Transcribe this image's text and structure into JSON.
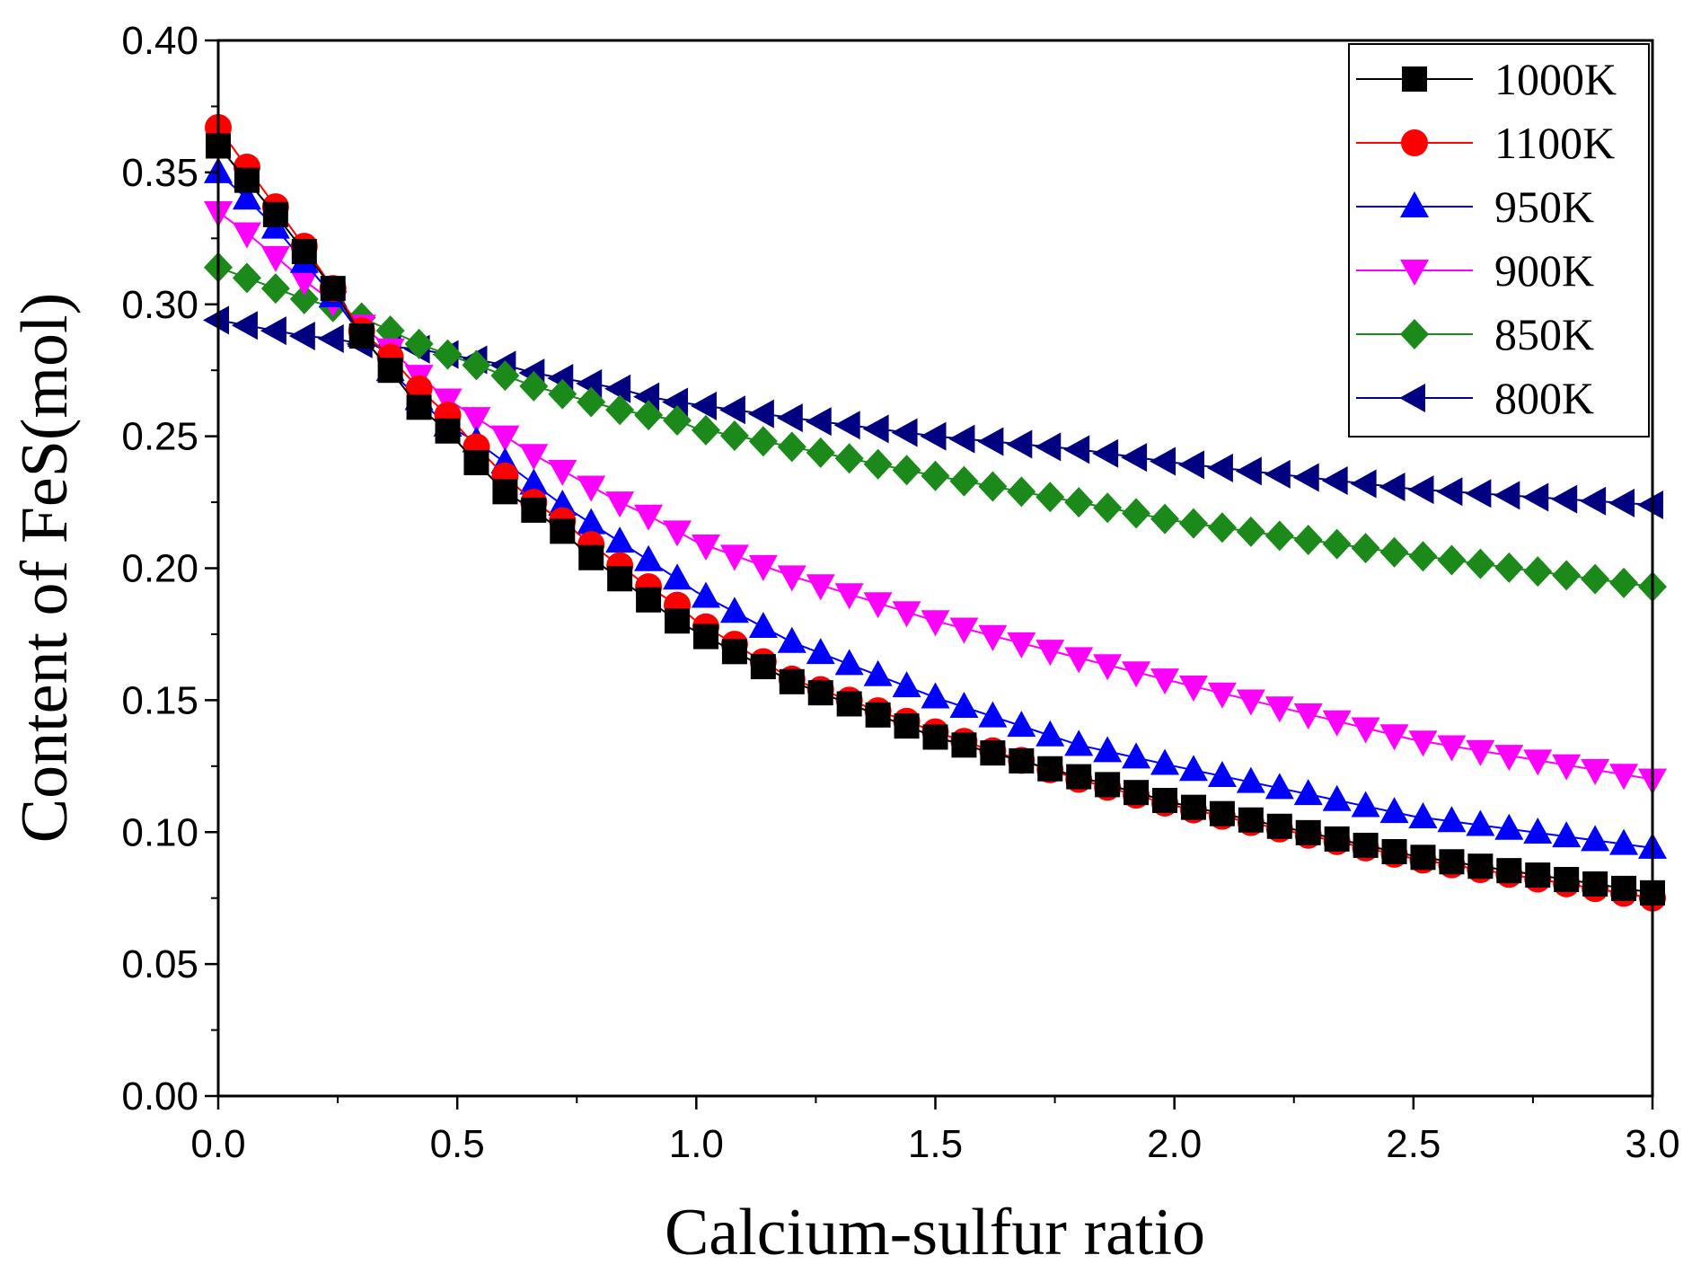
{
  "chart_data": {
    "type": "line",
    "xlabel": "Calcium-sulfur ratio",
    "ylabel": "Content of FeS(mol)",
    "xlim": [
      0,
      3.0
    ],
    "ylim": [
      0,
      0.4
    ],
    "x_ticks": [
      0,
      0.5,
      1.0,
      1.5,
      2.0,
      2.5,
      3.0
    ],
    "x_tick_labels": [
      "0.0",
      "0.5",
      "1.0",
      "1.5",
      "2.0",
      "2.5",
      "3.0"
    ],
    "y_ticks": [
      0,
      0.05,
      0.1,
      0.15,
      0.2,
      0.25,
      0.3,
      0.35,
      0.4
    ],
    "y_tick_labels": [
      "0.00",
      "0.05",
      "0.10",
      "0.15",
      "0.20",
      "0.25",
      "0.30",
      "0.35",
      "0.40"
    ],
    "grid": false,
    "legend_position": "top-right",
    "marker_spacing": 0.06,
    "series": [
      {
        "name": "1000K",
        "color": "#000000",
        "marker": "square",
        "control_points": [
          [
            0,
            0.36
          ],
          [
            0.06,
            0.347
          ],
          [
            0.12,
            0.334
          ],
          [
            0.18,
            0.32
          ],
          [
            0.24,
            0.306
          ],
          [
            0.3,
            0.288
          ],
          [
            0.36,
            0.275
          ],
          [
            0.42,
            0.261
          ],
          [
            0.48,
            0.252
          ],
          [
            0.54,
            0.24
          ],
          [
            0.6,
            0.229
          ],
          [
            0.66,
            0.222
          ],
          [
            0.72,
            0.214
          ],
          [
            0.78,
            0.204
          ],
          [
            0.84,
            0.196
          ],
          [
            0.9,
            0.188
          ],
          [
            0.96,
            0.18
          ],
          [
            1.0,
            0.176
          ],
          [
            1.2,
            0.157
          ],
          [
            1.5,
            0.136
          ],
          [
            1.8,
            0.121
          ],
          [
            2.0,
            0.111
          ],
          [
            2.5,
            0.091
          ],
          [
            3.0,
            0.077
          ]
        ]
      },
      {
        "name": "1100K",
        "color": "#ff0000",
        "marker": "circle",
        "control_points": [
          [
            0,
            0.367
          ],
          [
            0.06,
            0.352
          ],
          [
            0.12,
            0.337
          ],
          [
            0.18,
            0.322
          ],
          [
            0.24,
            0.306
          ],
          [
            0.3,
            0.29
          ],
          [
            0.36,
            0.28
          ],
          [
            0.42,
            0.268
          ],
          [
            0.48,
            0.258
          ],
          [
            0.54,
            0.246
          ],
          [
            0.6,
            0.235
          ],
          [
            0.66,
            0.225
          ],
          [
            0.72,
            0.218
          ],
          [
            0.78,
            0.209
          ],
          [
            0.84,
            0.201
          ],
          [
            0.9,
            0.193
          ],
          [
            0.96,
            0.186
          ],
          [
            1.0,
            0.18
          ],
          [
            1.2,
            0.158
          ],
          [
            1.5,
            0.138
          ],
          [
            1.8,
            0.12
          ],
          [
            2.0,
            0.11
          ],
          [
            2.5,
            0.09
          ],
          [
            3.0,
            0.075
          ]
        ]
      },
      {
        "name": "950K",
        "color": "#0000ff",
        "marker": "triangle-up",
        "control_points": [
          [
            0,
            0.35
          ],
          [
            0.06,
            0.34
          ],
          [
            0.12,
            0.329
          ],
          [
            0.18,
            0.316
          ],
          [
            0.24,
            0.303
          ],
          [
            0.3,
            0.288
          ],
          [
            0.36,
            0.275
          ],
          [
            0.42,
            0.264
          ],
          [
            0.48,
            0.254
          ],
          [
            0.54,
            0.248
          ],
          [
            0.6,
            0.24
          ],
          [
            0.66,
            0.232
          ],
          [
            0.72,
            0.224
          ],
          [
            0.78,
            0.217
          ],
          [
            0.84,
            0.21
          ],
          [
            0.9,
            0.203
          ],
          [
            0.96,
            0.196
          ],
          [
            1.0,
            0.191
          ],
          [
            1.2,
            0.172
          ],
          [
            1.5,
            0.151
          ],
          [
            1.8,
            0.133
          ],
          [
            2.0,
            0.125
          ],
          [
            2.5,
            0.106
          ],
          [
            3.0,
            0.094
          ]
        ]
      },
      {
        "name": "900K",
        "color": "#ff00ff",
        "marker": "triangle-down",
        "control_points": [
          [
            0,
            0.335
          ],
          [
            0.06,
            0.327
          ],
          [
            0.12,
            0.318
          ],
          [
            0.18,
            0.309
          ],
          [
            0.24,
            0.301
          ],
          [
            0.3,
            0.292
          ],
          [
            0.36,
            0.283
          ],
          [
            0.42,
            0.273
          ],
          [
            0.48,
            0.264
          ],
          [
            0.54,
            0.257
          ],
          [
            0.6,
            0.25
          ],
          [
            0.66,
            0.243
          ],
          [
            0.72,
            0.237
          ],
          [
            0.78,
            0.231
          ],
          [
            0.84,
            0.225
          ],
          [
            0.9,
            0.22
          ],
          [
            0.96,
            0.214
          ],
          [
            1.0,
            0.21
          ],
          [
            1.2,
            0.197
          ],
          [
            1.5,
            0.18
          ],
          [
            1.8,
            0.166
          ],
          [
            2.0,
            0.157
          ],
          [
            2.5,
            0.135
          ],
          [
            3.0,
            0.12
          ]
        ]
      },
      {
        "name": "850K",
        "color": "#1b8a1b",
        "marker": "diamond",
        "control_points": [
          [
            0,
            0.314
          ],
          [
            0.06,
            0.31
          ],
          [
            0.12,
            0.306
          ],
          [
            0.18,
            0.302
          ],
          [
            0.24,
            0.299
          ],
          [
            0.3,
            0.295
          ],
          [
            0.36,
            0.29
          ],
          [
            0.42,
            0.285
          ],
          [
            0.48,
            0.281
          ],
          [
            0.54,
            0.277
          ],
          [
            0.6,
            0.273
          ],
          [
            0.66,
            0.269
          ],
          [
            0.72,
            0.266
          ],
          [
            0.78,
            0.263
          ],
          [
            0.84,
            0.26
          ],
          [
            0.9,
            0.258
          ],
          [
            0.96,
            0.256
          ],
          [
            1.0,
            0.253
          ],
          [
            1.2,
            0.246
          ],
          [
            1.5,
            0.235
          ],
          [
            1.8,
            0.225
          ],
          [
            2.0,
            0.218
          ],
          [
            2.5,
            0.205
          ],
          [
            3.0,
            0.193
          ]
        ]
      },
      {
        "name": "800K",
        "color": "#000080",
        "marker": "triangle-left",
        "control_points": [
          [
            0,
            0.294
          ],
          [
            0.06,
            0.292
          ],
          [
            0.12,
            0.29
          ],
          [
            0.18,
            0.288
          ],
          [
            0.24,
            0.287
          ],
          [
            0.3,
            0.285
          ],
          [
            0.36,
            0.284
          ],
          [
            0.42,
            0.283
          ],
          [
            0.48,
            0.281
          ],
          [
            0.54,
            0.279
          ],
          [
            0.6,
            0.277
          ],
          [
            0.66,
            0.274
          ],
          [
            0.72,
            0.272
          ],
          [
            0.78,
            0.27
          ],
          [
            0.84,
            0.268
          ],
          [
            0.9,
            0.265
          ],
          [
            0.96,
            0.263
          ],
          [
            1.0,
            0.262
          ],
          [
            1.2,
            0.257
          ],
          [
            1.5,
            0.25
          ],
          [
            1.8,
            0.245
          ],
          [
            2.0,
            0.24
          ],
          [
            2.5,
            0.23
          ],
          [
            3.0,
            0.224
          ]
        ]
      }
    ]
  }
}
